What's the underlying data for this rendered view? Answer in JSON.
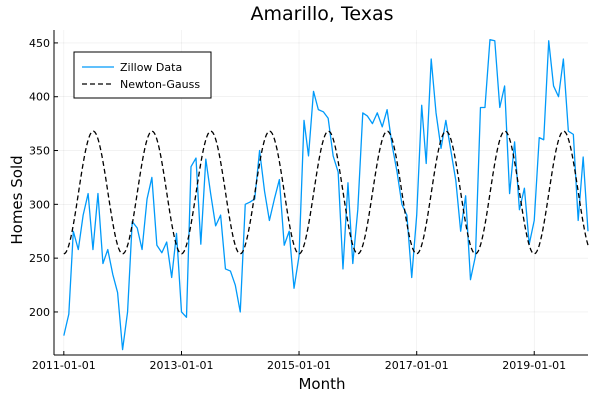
{
  "chart_data": {
    "type": "line",
    "title": "Amarillo, Texas",
    "xlabel": "Month",
    "ylabel": "Homes Sold",
    "x_range": [
      "2010-11-01",
      "2019-12-01"
    ],
    "ylim": [
      160,
      462
    ],
    "x_ticks": [
      "2011-01-01",
      "2013-01-01",
      "2015-01-01",
      "2017-01-01",
      "2019-01-01"
    ],
    "y_ticks": [
      200,
      250,
      300,
      350,
      400,
      450
    ],
    "grid": true,
    "legend_position": "top-left",
    "series": [
      {
        "name": "Zillow Data",
        "color": "#009AFA",
        "dash": "solid",
        "x": [
          "2011-01-01",
          "2011-02-01",
          "2011-03-01",
          "2011-04-01",
          "2011-05-01",
          "2011-06-01",
          "2011-07-01",
          "2011-08-01",
          "2011-09-01",
          "2011-10-01",
          "2011-11-01",
          "2011-12-01",
          "2012-01-01",
          "2012-02-01",
          "2012-03-01",
          "2012-04-01",
          "2012-05-01",
          "2012-06-01",
          "2012-07-01",
          "2012-08-01",
          "2012-09-01",
          "2012-10-01",
          "2012-11-01",
          "2012-12-01",
          "2013-01-01",
          "2013-02-01",
          "2013-03-01",
          "2013-04-01",
          "2013-05-01",
          "2013-06-01",
          "2013-07-01",
          "2013-08-01",
          "2013-09-01",
          "2013-10-01",
          "2013-11-01",
          "2013-12-01",
          "2014-01-01",
          "2014-02-01",
          "2014-03-01",
          "2014-04-01",
          "2014-05-01",
          "2014-06-01",
          "2014-07-01",
          "2014-08-01",
          "2014-09-01",
          "2014-10-01",
          "2014-11-01",
          "2014-12-01",
          "2015-01-01",
          "2015-02-01",
          "2015-03-01",
          "2015-04-01",
          "2015-05-01",
          "2015-06-01",
          "2015-07-01",
          "2015-08-01",
          "2015-09-01",
          "2015-10-01",
          "2015-11-01",
          "2015-12-01",
          "2016-01-01",
          "2016-02-01",
          "2016-03-01",
          "2016-04-01",
          "2016-05-01",
          "2016-06-01",
          "2016-07-01",
          "2016-08-01",
          "2016-09-01",
          "2016-10-01",
          "2016-11-01",
          "2016-12-01",
          "2017-01-01",
          "2017-02-01",
          "2017-03-01",
          "2017-04-01",
          "2017-05-01",
          "2017-06-01",
          "2017-07-01",
          "2017-08-01",
          "2017-09-01",
          "2017-10-01",
          "2017-11-01",
          "2017-12-01",
          "2018-01-01",
          "2018-02-01",
          "2018-03-01",
          "2018-04-01",
          "2018-05-01",
          "2018-06-01",
          "2018-07-01",
          "2018-08-01",
          "2018-09-01",
          "2018-10-01",
          "2018-11-01",
          "2018-12-01",
          "2019-01-01",
          "2019-02-01",
          "2019-03-01",
          "2019-04-01",
          "2019-05-01",
          "2019-06-01",
          "2019-07-01",
          "2019-08-01",
          "2019-09-01",
          "2019-10-01",
          "2019-11-01",
          "2019-12-01"
        ],
        "values": [
          178,
          198,
          275,
          258,
          290,
          310,
          258,
          310,
          245,
          258,
          235,
          218,
          165,
          200,
          284,
          278,
          258,
          305,
          325,
          262,
          255,
          265,
          232,
          273,
          200,
          195,
          335,
          343,
          263,
          342,
          310,
          280,
          290,
          240,
          238,
          225,
          200,
          300,
          302,
          305,
          350,
          312,
          285,
          305,
          323,
          262,
          275,
          222,
          252,
          378,
          345,
          405,
          388,
          386,
          380,
          345,
          330,
          240,
          320,
          245,
          295,
          385,
          382,
          375,
          385,
          372,
          388,
          355,
          330,
          300,
          290,
          232,
          290,
          392,
          338,
          435,
          385,
          352,
          378,
          350,
          322,
          275,
          308,
          230,
          252,
          390,
          390,
          453,
          452,
          390,
          410,
          310,
          358,
          295,
          315,
          263,
          285,
          362,
          360,
          452,
          410,
          400,
          435,
          368,
          365,
          285,
          344,
          275
        ]
      },
      {
        "name": "Newton-Gauss",
        "color": "#000000",
        "dash": "dashed",
        "x_start": "2011-01-01",
        "x_end": "2019-12-01",
        "period_months": 12,
        "mean": 311,
        "amplitude": 57,
        "peak_month": 7
      }
    ]
  }
}
